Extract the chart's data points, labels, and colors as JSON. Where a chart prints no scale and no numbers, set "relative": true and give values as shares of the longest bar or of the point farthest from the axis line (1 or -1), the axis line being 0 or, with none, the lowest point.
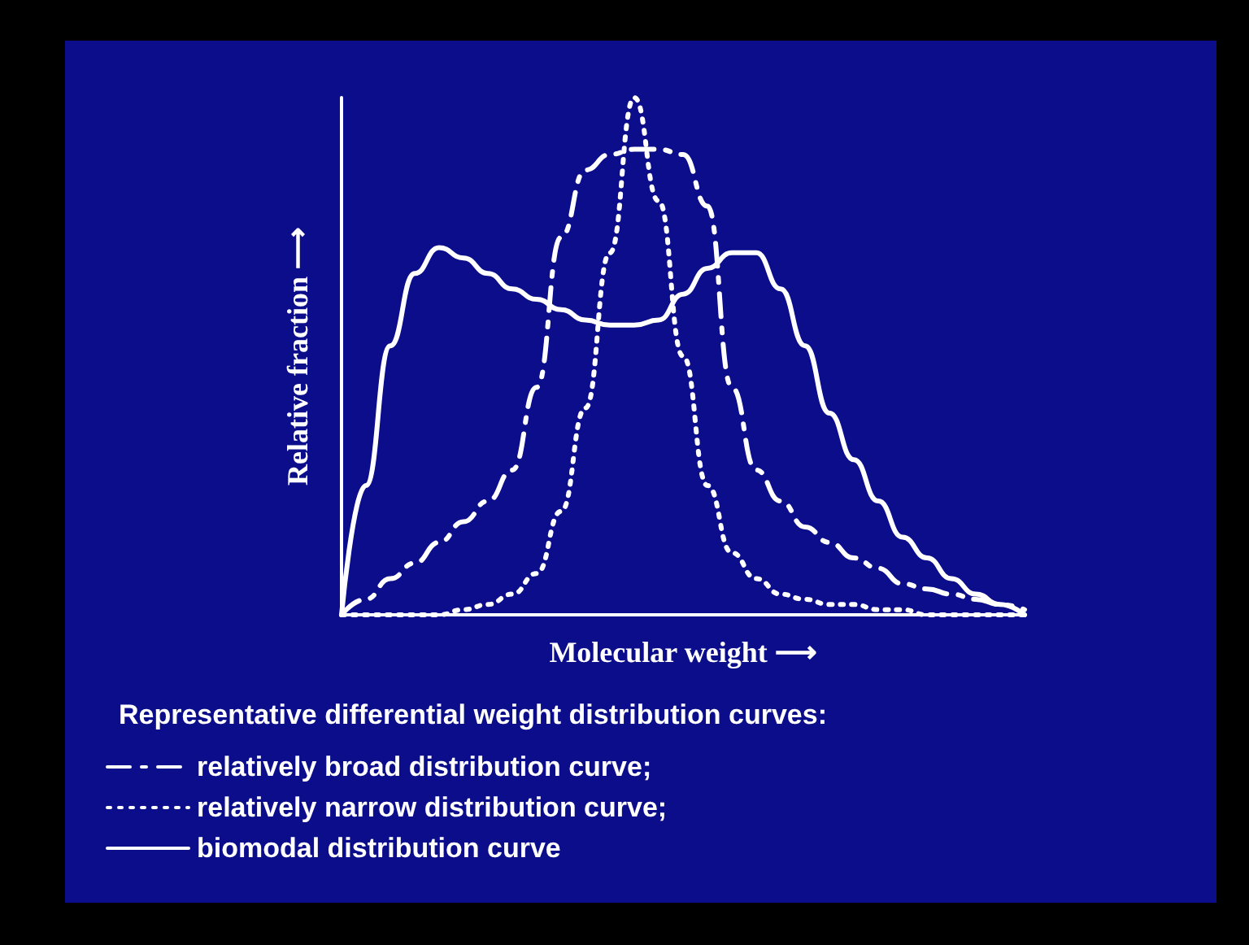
{
  "chart_data": {
    "type": "line",
    "relative": true,
    "xlabel": "Molecular weight ⟶",
    "ylabel": "Relative fraction ⟶",
    "legend_title": "Representative differential weight distribution curves:",
    "legend": "bottom left",
    "grid": false,
    "marker": "none",
    "categories": [
      null,
      null,
      null,
      null,
      null,
      null,
      null,
      null,
      null,
      null,
      null,
      null,
      null,
      null,
      null,
      null,
      null,
      null,
      null,
      null,
      null,
      null,
      null,
      null,
      null,
      null,
      null,
      null,
      null
    ],
    "series": [
      {
        "name": "relatively broad distribution curve;",
        "color": "#ffffff",
        "line_style": "dashed",
        "values": [
          0,
          0.03,
          0.07,
          0.1,
          0.14,
          0.18,
          0.22,
          0.28,
          0.44,
          0.73,
          0.86,
          0.89,
          0.9,
          0.9,
          0.89,
          0.79,
          0.44,
          0.28,
          0.22,
          0.17,
          0.14,
          0.11,
          0.09,
          0.06,
          0.05,
          0.04,
          0.03,
          0.02,
          0.01
        ]
      },
      {
        "name": "relatively narrow distribution curve;",
        "color": "#ffffff",
        "line_style": "dotted",
        "values": [
          0,
          0,
          0,
          0,
          0,
          0.01,
          0.02,
          0.04,
          0.08,
          0.2,
          0.4,
          0.7,
          1,
          0.8,
          0.5,
          0.25,
          0.12,
          0.07,
          0.04,
          0.03,
          0.02,
          0.02,
          0.01,
          0.01,
          0,
          0,
          0,
          0,
          0
        ]
      },
      {
        "name": "biomodal distribution curve",
        "color": "#ffffff",
        "line_style": "solid",
        "values": [
          0,
          0.25,
          0.52,
          0.66,
          0.71,
          0.69,
          0.66,
          0.63,
          0.61,
          0.59,
          0.57,
          0.56,
          0.56,
          0.57,
          0.62,
          0.67,
          0.7,
          0.7,
          0.63,
          0.52,
          0.39,
          0.3,
          0.22,
          0.15,
          0.11,
          0.07,
          0.04,
          0.02,
          0
        ]
      }
    ]
  }
}
